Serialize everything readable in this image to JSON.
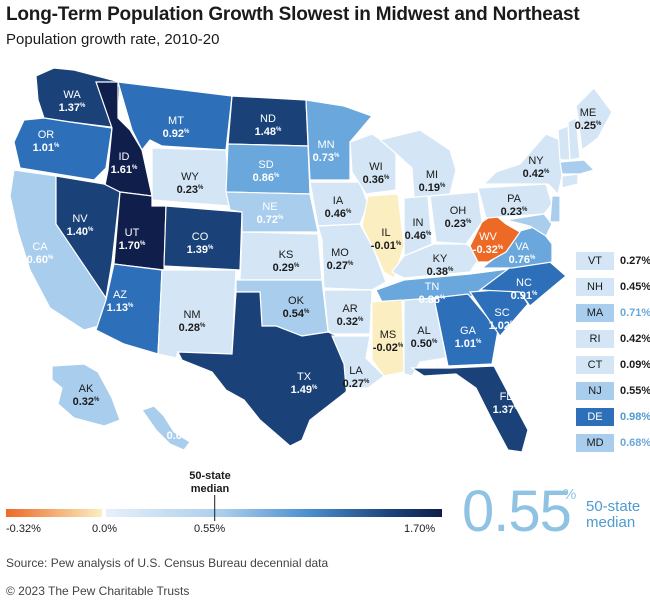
{
  "title": "Long-Term Population Growth Slowest in Midwest and Northeast",
  "subtitle": "Population growth rate, 2010-20",
  "colors": {
    "neg_strong": "#ec6a26",
    "neg_light": "#fbeec0",
    "c1": "#d4e6f5",
    "c2": "#a9cdec",
    "c3": "#6aa7dc",
    "c4": "#2d6fb8",
    "c5": "#1a4279",
    "c6": "#0f1e4a"
  },
  "states": [
    {
      "abbr": "WA",
      "value": "1.37",
      "pct": "%"
    },
    {
      "abbr": "OR",
      "value": "1.01",
      "pct": "%"
    },
    {
      "abbr": "CA",
      "value": "0.60",
      "pct": "%"
    },
    {
      "abbr": "ID",
      "value": "1.61",
      "pct": "%"
    },
    {
      "abbr": "NV",
      "value": "1.40",
      "pct": "%"
    },
    {
      "abbr": "MT",
      "value": "0.92",
      "pct": "%"
    },
    {
      "abbr": "WY",
      "value": "0.23",
      "pct": "%"
    },
    {
      "abbr": "UT",
      "value": "1.70",
      "pct": "%"
    },
    {
      "abbr": "AZ",
      "value": "1.13",
      "pct": "%"
    },
    {
      "abbr": "CO",
      "value": "1.39",
      "pct": "%"
    },
    {
      "abbr": "NM",
      "value": "0.28",
      "pct": "%"
    },
    {
      "abbr": "ND",
      "value": "1.48",
      "pct": "%"
    },
    {
      "abbr": "SD",
      "value": "0.86",
      "pct": "%"
    },
    {
      "abbr": "NE",
      "value": "0.72",
      "pct": "%"
    },
    {
      "abbr": "KS",
      "value": "0.29",
      "pct": "%"
    },
    {
      "abbr": "OK",
      "value": "0.54",
      "pct": "%"
    },
    {
      "abbr": "TX",
      "value": "1.49",
      "pct": "%"
    },
    {
      "abbr": "MN",
      "value": "0.73",
      "pct": "%"
    },
    {
      "abbr": "IA",
      "value": "0.46",
      "pct": "%"
    },
    {
      "abbr": "MO",
      "value": "0.27",
      "pct": "%"
    },
    {
      "abbr": "AR",
      "value": "0.32",
      "pct": "%"
    },
    {
      "abbr": "LA",
      "value": "0.27",
      "pct": "%"
    },
    {
      "abbr": "WI",
      "value": "0.36",
      "pct": "%"
    },
    {
      "abbr": "IL",
      "value": "-0.01",
      "pct": "%"
    },
    {
      "abbr": "MI",
      "value": "0.19",
      "pct": "%"
    },
    {
      "abbr": "IN",
      "value": "0.46",
      "pct": "%"
    },
    {
      "abbr": "OH",
      "value": "0.23",
      "pct": "%"
    },
    {
      "abbr": "KY",
      "value": "0.38",
      "pct": "%"
    },
    {
      "abbr": "TN",
      "value": "0.86",
      "pct": "%"
    },
    {
      "abbr": "MS",
      "value": "-0.02",
      "pct": "%"
    },
    {
      "abbr": "AL",
      "value": "0.50",
      "pct": "%"
    },
    {
      "abbr": "GA",
      "value": "1.01",
      "pct": "%"
    },
    {
      "abbr": "FL",
      "value": "1.37",
      "pct": "%"
    },
    {
      "abbr": "SC",
      "value": "1.02",
      "pct": "%"
    },
    {
      "abbr": "NC",
      "value": "0.91",
      "pct": "%"
    },
    {
      "abbr": "VA",
      "value": "0.76",
      "pct": "%"
    },
    {
      "abbr": "WV",
      "value": "-0.32",
      "pct": "%"
    },
    {
      "abbr": "PA",
      "value": "0.23",
      "pct": "%"
    },
    {
      "abbr": "NY",
      "value": "0.42",
      "pct": "%"
    },
    {
      "abbr": "ME",
      "value": "0.25",
      "pct": "%"
    },
    {
      "abbr": "AK",
      "value": "0.32",
      "pct": "%"
    },
    {
      "abbr": "HI",
      "value": "0.68",
      "pct": "%"
    }
  ],
  "northeast": [
    {
      "abbr": "VT",
      "value": "0.27%"
    },
    {
      "abbr": "NH",
      "value": "0.45%"
    },
    {
      "abbr": "MA",
      "value": "0.71%"
    },
    {
      "abbr": "RI",
      "value": "0.42%"
    },
    {
      "abbr": "CT",
      "value": "0.09%"
    },
    {
      "abbr": "NJ",
      "value": "0.55%"
    },
    {
      "abbr": "DE",
      "value": "0.98%"
    },
    {
      "abbr": "MD",
      "value": "0.68%"
    }
  ],
  "legend": {
    "min_label": "-0.32%",
    "zero_label": "0.0%",
    "median_label": "0.55%",
    "max_label": "1.70%",
    "median_title_1": "50-state",
    "median_title_2": "median",
    "min": -0.32,
    "median": 0.55,
    "max": 1.7
  },
  "median_callout": {
    "value": "0.55",
    "pct": "%",
    "caption_1": "50-state",
    "caption_2": "median"
  },
  "source": "Source: Pew analysis of U.S. Census Bureau decennial data",
  "copyright": "© 2023 The Pew Charitable Trusts"
}
